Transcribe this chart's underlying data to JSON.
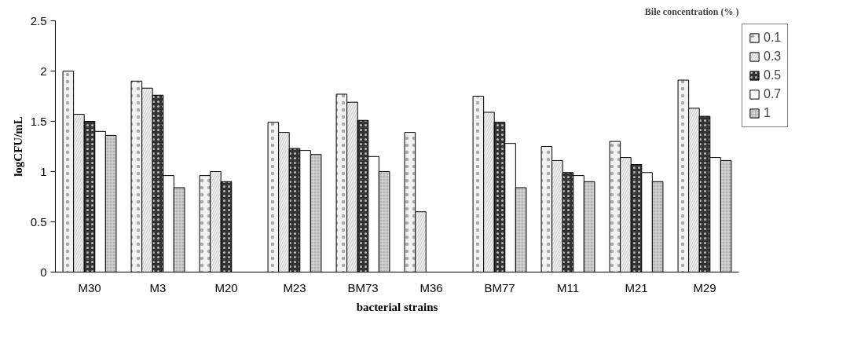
{
  "chart_data": {
    "type": "bar",
    "xlabel": "bacterial strains",
    "ylabel": "logCFU/mL",
    "legend_title": "Bile concentration (% )",
    "categories": [
      "M30",
      "M3",
      "M20",
      "M23",
      "BM73",
      "M36",
      "BM77",
      "M11",
      "M21",
      "M29"
    ],
    "series": [
      {
        "name": "0.1",
        "color": "#f2f2f2",
        "values": [
          2.0,
          1.9,
          0.96,
          1.49,
          1.77,
          1.39,
          1.75,
          1.25,
          1.3,
          1.91
        ]
      },
      {
        "name": "0.3",
        "color": "#d9d9d9",
        "values": [
          1.57,
          1.83,
          1.0,
          1.39,
          1.69,
          0.6,
          1.59,
          1.11,
          1.14,
          1.63
        ]
      },
      {
        "name": "0.5",
        "color": "#333333",
        "values": [
          1.5,
          1.76,
          0.9,
          1.23,
          1.51,
          null,
          1.49,
          0.99,
          1.07,
          1.55
        ]
      },
      {
        "name": "0.7",
        "color": "#ffffff",
        "values": [
          1.4,
          0.96,
          null,
          1.21,
          1.15,
          null,
          1.28,
          0.96,
          0.99,
          1.14
        ]
      },
      {
        "name": "1",
        "color": "#b3b3b3",
        "values": [
          1.36,
          0.84,
          null,
          1.17,
          1.0,
          null,
          0.84,
          0.9,
          0.9,
          1.11
        ]
      }
    ],
    "ylim": [
      0,
      2.5
    ],
    "yticks": [
      0,
      0.5,
      1,
      1.5,
      2,
      2.5
    ],
    "grid": false,
    "legend": "right"
  }
}
